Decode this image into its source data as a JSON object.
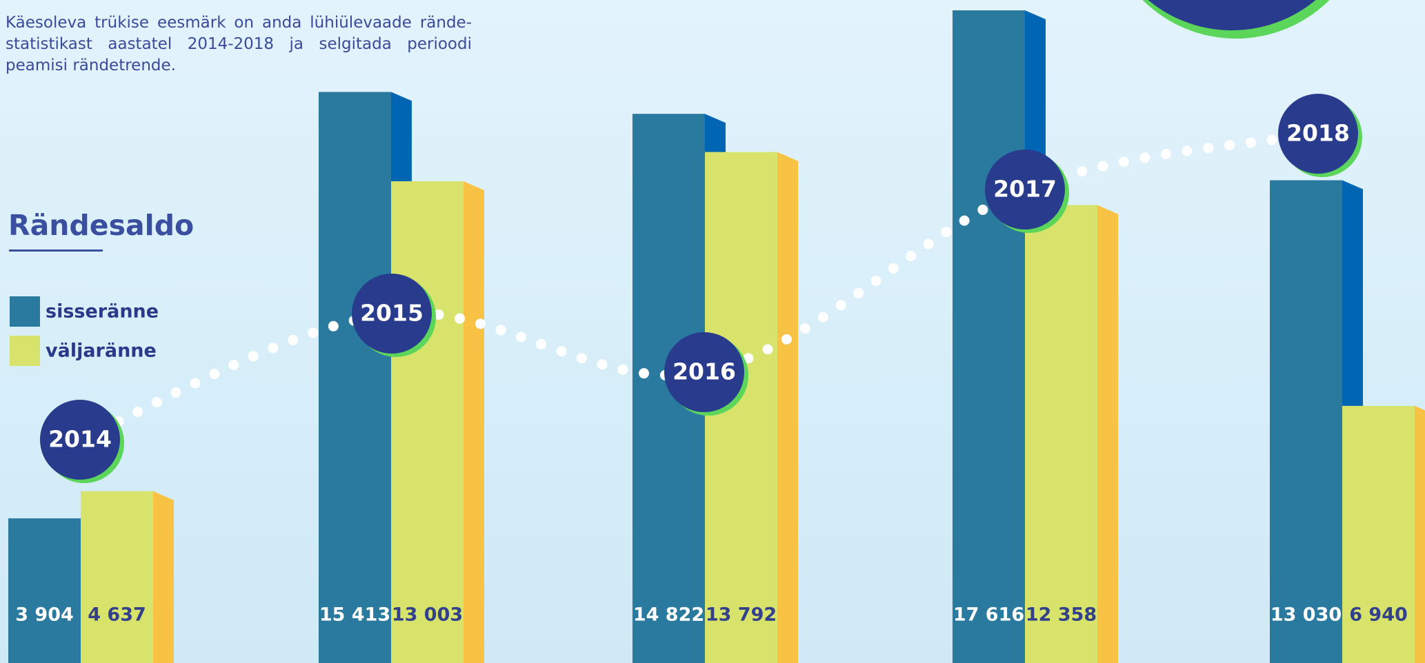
{
  "intro": "Käesoleva trükise eesmärk on anda lühiülevaade rände-statistikast aastatel 2014-2018 ja selgitada perioodi peamisi rändetrende.",
  "chart_data": {
    "type": "bar",
    "title": "Rändesaldo",
    "categories": [
      "2014",
      "2015",
      "2016",
      "2017",
      "2018"
    ],
    "series": [
      {
        "name": "sisseränne",
        "color": "#2a7aa0",
        "side_color": "#0066b3",
        "values": [
          3904,
          15413,
          14822,
          17616,
          13030
        ],
        "value_labels": [
          "3 904",
          "15 413",
          "14 822",
          "17 616",
          "13 030"
        ]
      },
      {
        "name": "väljaränne",
        "color": "#d7e36a",
        "side_color": "#f8c244",
        "values": [
          4637,
          13003,
          13792,
          12358,
          6940
        ],
        "value_labels": [
          "4 637",
          "13 003",
          "13 792",
          "12 358",
          "6 940"
        ]
      }
    ]
  }
}
